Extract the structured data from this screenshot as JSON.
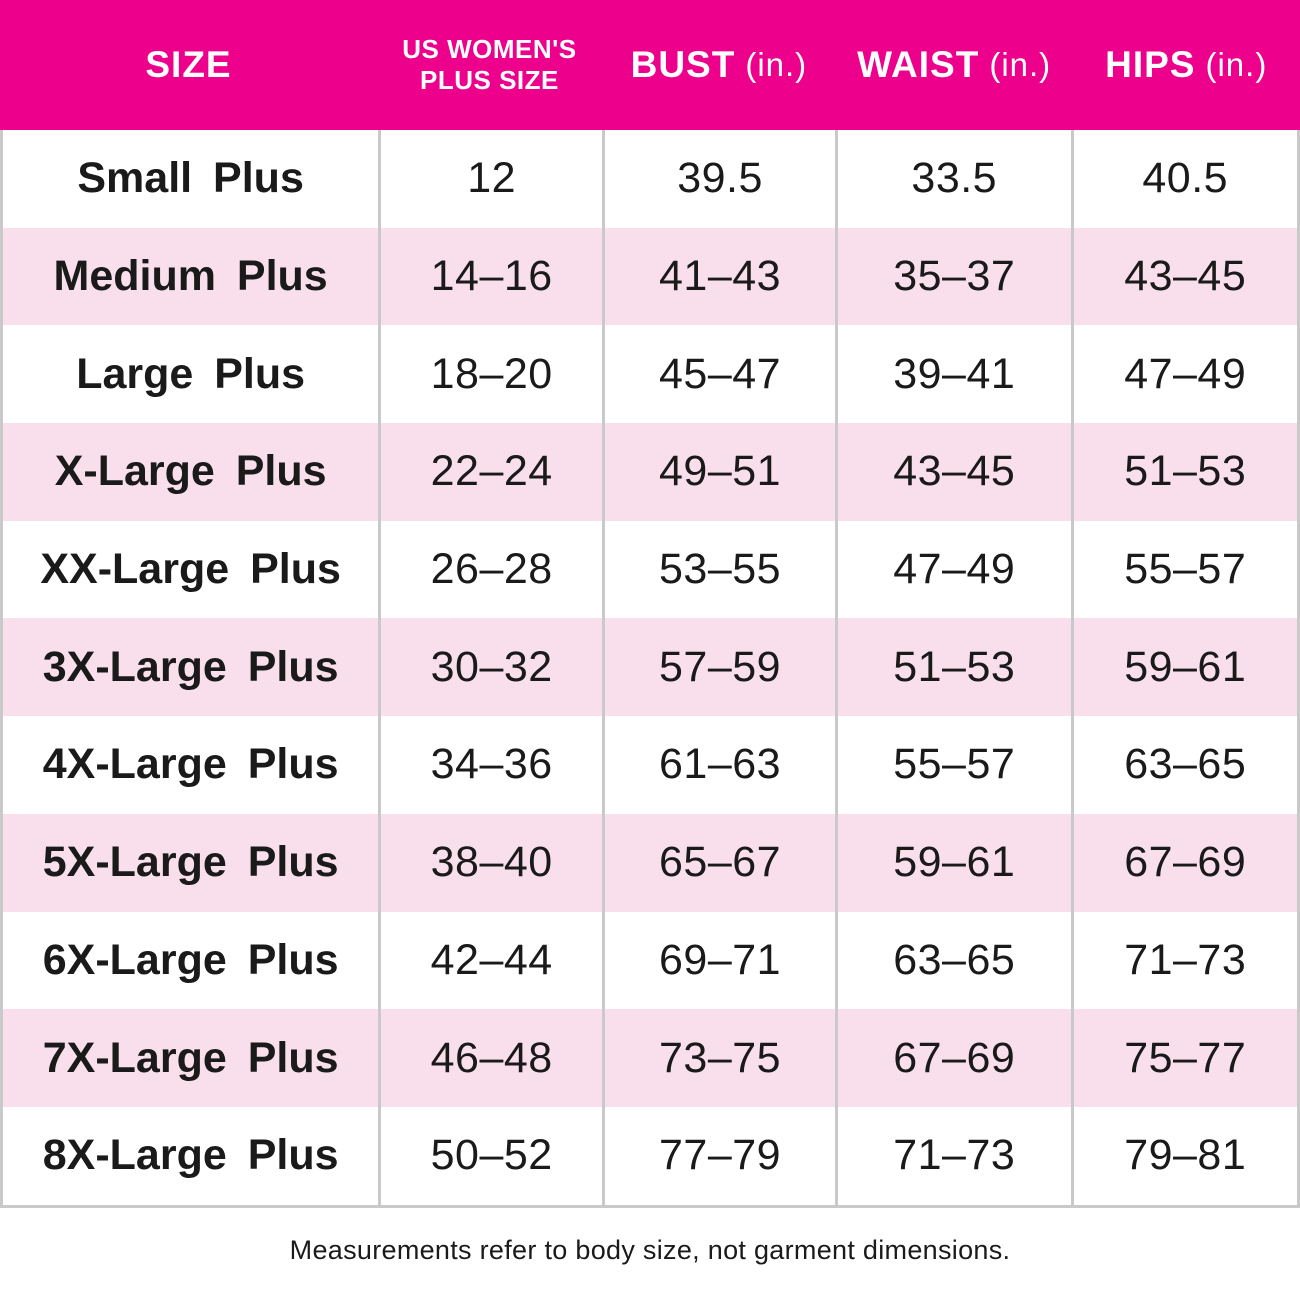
{
  "colors": {
    "accent": "#EC008C",
    "row_alt": "#F9DFEC",
    "grid_line": "#C9C9C9",
    "header_text": "#FFFFFF",
    "body_text": "#1A1A1A"
  },
  "header": {
    "columns": [
      {
        "label": "SIZE"
      },
      {
        "label": "US WOMEN'S PLUS SIZE",
        "line1": "US WOMEN'S",
        "line2": "PLUS SIZE"
      },
      {
        "label": "BUST",
        "unit": "(in.)"
      },
      {
        "label": "WAIST",
        "unit": "(in.)"
      },
      {
        "label": "HIPS",
        "unit": "(in.)"
      }
    ]
  },
  "rows": [
    {
      "size": "Small Plus",
      "us_plus_size": "12",
      "bust": "39.5",
      "waist": "33.5",
      "hips": "40.5"
    },
    {
      "size": "Medium Plus",
      "us_plus_size": "14–16",
      "bust": "41–43",
      "waist": "35–37",
      "hips": "43–45"
    },
    {
      "size": "Large Plus",
      "us_plus_size": "18–20",
      "bust": "45–47",
      "waist": "39–41",
      "hips": "47–49"
    },
    {
      "size": "X-Large Plus",
      "us_plus_size": "22–24",
      "bust": "49–51",
      "waist": "43–45",
      "hips": "51–53"
    },
    {
      "size": "XX-Large Plus",
      "us_plus_size": "26–28",
      "bust": "53–55",
      "waist": "47–49",
      "hips": "55–57"
    },
    {
      "size": "3X-Large Plus",
      "us_plus_size": "30–32",
      "bust": "57–59",
      "waist": "51–53",
      "hips": "59–61"
    },
    {
      "size": "4X-Large Plus",
      "us_plus_size": "34–36",
      "bust": "61–63",
      "waist": "55–57",
      "hips": "63–65"
    },
    {
      "size": "5X-Large Plus",
      "us_plus_size": "38–40",
      "bust": "65–67",
      "waist": "59–61",
      "hips": "67–69"
    },
    {
      "size": "6X-Large Plus",
      "us_plus_size": "42–44",
      "bust": "69–71",
      "waist": "63–65",
      "hips": "71–73"
    },
    {
      "size": "7X-Large Plus",
      "us_plus_size": "46–48",
      "bust": "73–75",
      "waist": "67–69",
      "hips": "75–77"
    },
    {
      "size": "8X-Large Plus",
      "us_plus_size": "50–52",
      "bust": "77–79",
      "waist": "71–73",
      "hips": "79–81"
    }
  ],
  "footnote": "Measurements refer to body size, not garment dimensions."
}
